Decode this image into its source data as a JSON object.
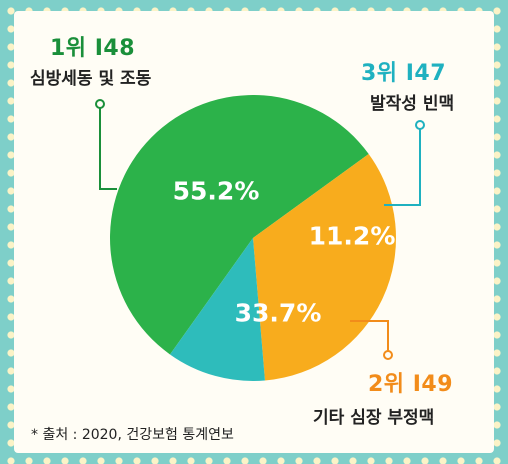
{
  "chart_data": {
    "type": "pie",
    "slices": [
      {
        "rank_label": "1위 I48",
        "name": "심방세동 및 조동",
        "value": 55.2,
        "label": "55.2%",
        "color": "#2cb24a"
      },
      {
        "rank_label": "2위 I49",
        "name": "기타 심장 부정맥",
        "value": 33.7,
        "label": "33.7%",
        "color": "#f8ac1d"
      },
      {
        "rank_label": "3위 I47",
        "name": "발작성 빈맥",
        "value": 11.2,
        "label": "11.2%",
        "color": "#2ebcbb"
      }
    ]
  },
  "colors": {
    "rank1": "#1a8f3a",
    "rank2": "#f28c1a",
    "rank3": "#1fb1c0",
    "background": "#7ecfc9",
    "panel": "#fffdf5"
  },
  "source": "* 출처 : 2020, 건강보험 통계연보"
}
